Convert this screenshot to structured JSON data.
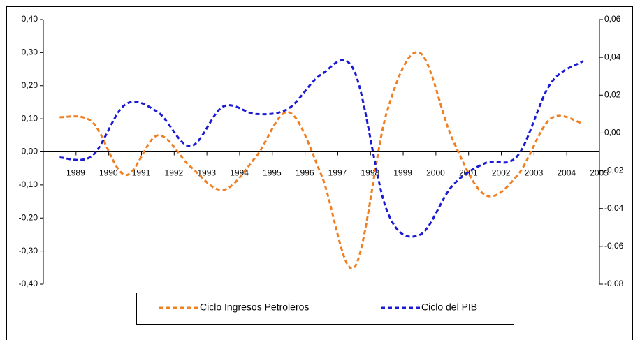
{
  "chart_data": {
    "type": "line",
    "categories": [
      "1989",
      "1990",
      "1991",
      "1992",
      "1993",
      "1994",
      "1995",
      "1996",
      "1997",
      "1998",
      "1999",
      "2000",
      "2001",
      "2002",
      "2003",
      "2004",
      "2005"
    ],
    "series": [
      {
        "name": "Ciclo Ingresos Petroleros",
        "color": "#f07f22",
        "axis": "y",
        "values": [
          0.105,
          0.09,
          -0.07,
          0.05,
          -0.045,
          -0.115,
          -0.015,
          0.12,
          -0.07,
          -0.35,
          0.12,
          0.3,
          0.04,
          -0.13,
          -0.07,
          0.1,
          0.085
        ]
      },
      {
        "name": "Ciclo del PIB",
        "color": "#1a1ad6",
        "axis": "y2",
        "values": [
          -0.013,
          -0.012,
          0.015,
          0.011,
          -0.007,
          0.014,
          0.01,
          0.013,
          0.031,
          0.033,
          -0.041,
          -0.054,
          -0.028,
          -0.016,
          -0.012,
          0.026,
          0.038
        ]
      }
    ],
    "ylim": [
      -0.4,
      0.4
    ],
    "yticks": [
      {
        "value": 0.4,
        "label": "0,40"
      },
      {
        "value": 0.3,
        "label": "0,30"
      },
      {
        "value": 0.2,
        "label": "0,20"
      },
      {
        "value": 0.1,
        "label": "0,10"
      },
      {
        "value": 0,
        "label": "0,00"
      },
      {
        "value": -0.1,
        "label": "-0,10"
      },
      {
        "value": -0.2,
        "label": "-0,20"
      },
      {
        "value": -0.3,
        "label": "-0,30"
      },
      {
        "value": -0.4,
        "label": "-0,40"
      }
    ],
    "y2lim": [
      -0.08,
      0.06
    ],
    "y2ticks": [
      {
        "value": 0.06,
        "label": "0,06"
      },
      {
        "value": 0.04,
        "label": "0,04"
      },
      {
        "value": 0.02,
        "label": "0,02"
      },
      {
        "value": 0,
        "label": "0,00"
      },
      {
        "value": -0.02,
        "label": "-0,02"
      },
      {
        "value": -0.04,
        "label": "-0,04"
      },
      {
        "value": -0.06,
        "label": "-0,06"
      },
      {
        "value": -0.08,
        "label": "-0,08"
      }
    ],
    "legend": "bottom"
  }
}
